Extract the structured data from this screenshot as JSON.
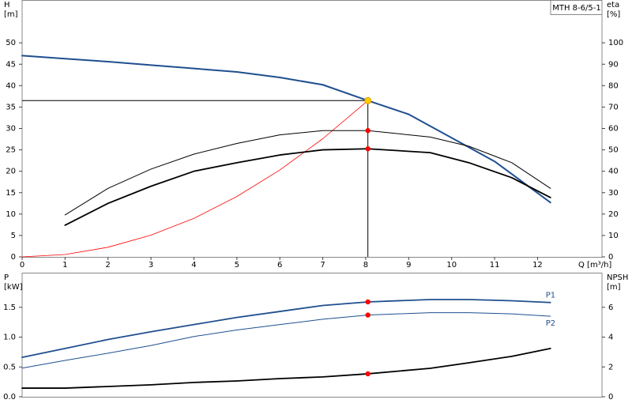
{
  "chart_data": [
    {
      "type": "line",
      "title": "MTH 8-6/5-1",
      "x_label": "Q [m³/h]",
      "y_label": [
        "H",
        "[m]"
      ],
      "y2_label": [
        "eta",
        "[%]"
      ],
      "xlim": [
        0,
        13.5
      ],
      "xticks": [
        0,
        1,
        2,
        3,
        4,
        5,
        6,
        7,
        8,
        9,
        10,
        11,
        12
      ],
      "ylim": [
        0,
        60
      ],
      "yticks": [
        0,
        5,
        10,
        15,
        20,
        25,
        30,
        35,
        40,
        45,
        50
      ],
      "y2lim": [
        0,
        120
      ],
      "y2ticks": [
        0,
        10,
        20,
        30,
        40,
        50,
        60,
        70,
        80,
        90,
        100
      ],
      "grid": false,
      "duty_x": 8.05,
      "crosshair": true,
      "series": [
        {
          "x": [
            0,
            1,
            2,
            3,
            4,
            5,
            6,
            7,
            8.05,
            9,
            10,
            11,
            12.3
          ],
          "values": [
            47,
            46.3,
            45.6,
            44.8,
            44,
            43.2,
            41.9,
            40.2,
            36.5,
            33.3,
            27.8,
            22.3,
            12.7
          ],
          "color": "#1f4f8f",
          "width": 2,
          "marker_color": "#ffcc00"
        },
        {
          "x": [
            0,
            1,
            2,
            3,
            4,
            5,
            6,
            7,
            8.05
          ],
          "values": [
            0,
            0.56,
            2.25,
            5.07,
            9,
            14.1,
            20.3,
            27.6,
            36.5
          ],
          "color": "#ff0000",
          "width": 0.8
        },
        {
          "x": [
            1,
            2,
            3,
            4,
            5,
            6,
            7,
            8.05,
            9.5,
            10.4,
            11.4,
            12.3
          ],
          "values": [
            19.6,
            32,
            41,
            48,
            53,
            57,
            59,
            59,
            56,
            51.7,
            44,
            32
          ],
          "color": "#000000",
          "width": 1,
          "axis": "y2",
          "marker_color": "#ff0000"
        },
        {
          "x": [
            1,
            2,
            3,
            4,
            5,
            6,
            7,
            8.05,
            9.5,
            10.4,
            11.4,
            12.3
          ],
          "values": [
            14.8,
            25,
            33,
            40,
            44,
            47.6,
            50,
            50.5,
            48.7,
            44,
            37,
            27.7
          ],
          "color": "#000000",
          "width": 1.8,
          "axis": "y2",
          "marker_color": "#ff0000"
        }
      ]
    },
    {
      "type": "line",
      "y_label": [
        "P",
        "[kW]"
      ],
      "y2_label": [
        "NPSH",
        "[m]"
      ],
      "xlim": [
        0,
        13.5
      ],
      "ylim": [
        0,
        2.08
      ],
      "yticks": [
        {
          "value": 0,
          "label": "0.0"
        },
        0.5,
        {
          "value": 1,
          "label": "1.0"
        },
        1.5
      ],
      "y2lim": [
        0,
        8.32
      ],
      "y2ticks": [
        0,
        2,
        4,
        6
      ],
      "grid": false,
      "duty_x": 8.05,
      "series": [
        {
          "name": "P1",
          "x": [
            0,
            1,
            2,
            3,
            4,
            5,
            6,
            7,
            8.05,
            9.5,
            10.4,
            11.4,
            12.3
          ],
          "values": [
            0.66,
            0.81,
            0.96,
            1.09,
            1.21,
            1.33,
            1.43,
            1.53,
            1.59,
            1.63,
            1.63,
            1.61,
            1.58
          ],
          "color": "#1f4f8f",
          "width": 1.8,
          "marker_color": "#ff0000"
        },
        {
          "name": "P2",
          "x": [
            0,
            1,
            2,
            3,
            4,
            5,
            6,
            7,
            8.05,
            9.5,
            10.4,
            11.4,
            12.3
          ],
          "values": [
            0.48,
            0.61,
            0.73,
            0.86,
            1.01,
            1.12,
            1.21,
            1.3,
            1.37,
            1.41,
            1.41,
            1.39,
            1.35
          ],
          "color": "#1f4f8f",
          "width": 1,
          "marker_color": "#ff0000"
        },
        {
          "x": [
            0,
            1,
            2,
            3,
            4,
            5,
            6,
            7,
            8.05,
            9.5,
            10.4,
            11.4,
            12.3
          ],
          "values": [
            0.58,
            0.58,
            0.69,
            0.8,
            0.96,
            1.06,
            1.22,
            1.33,
            1.54,
            1.91,
            2.28,
            2.71,
            3.24
          ],
          "color": "#000000",
          "width": 1.8,
          "axis": "y2",
          "marker_color": "#ff0000"
        }
      ]
    }
  ]
}
